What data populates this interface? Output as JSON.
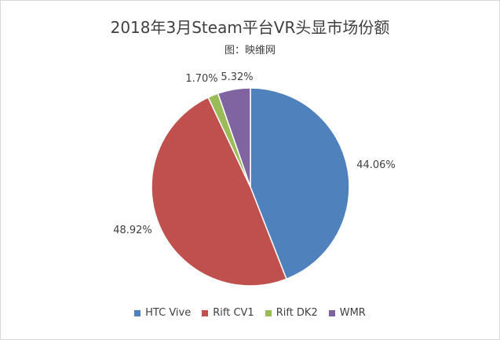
{
  "chart_data": {
    "type": "pie",
    "title": "2018年3月Steam平台VR头显市场份额",
    "subtitle": "图：映维网",
    "categories": [
      "HTC Vive",
      "Rift CV1",
      "Rift DK2",
      "WMR"
    ],
    "values": [
      44.06,
      48.92,
      1.7,
      5.32
    ],
    "data_labels": [
      "44.06%",
      "48.92%",
      "1.70%",
      "5.32%"
    ],
    "colors": [
      "#4f81bd",
      "#c0504d",
      "#9bbb59",
      "#8064a2"
    ],
    "legend_position": "bottom"
  }
}
